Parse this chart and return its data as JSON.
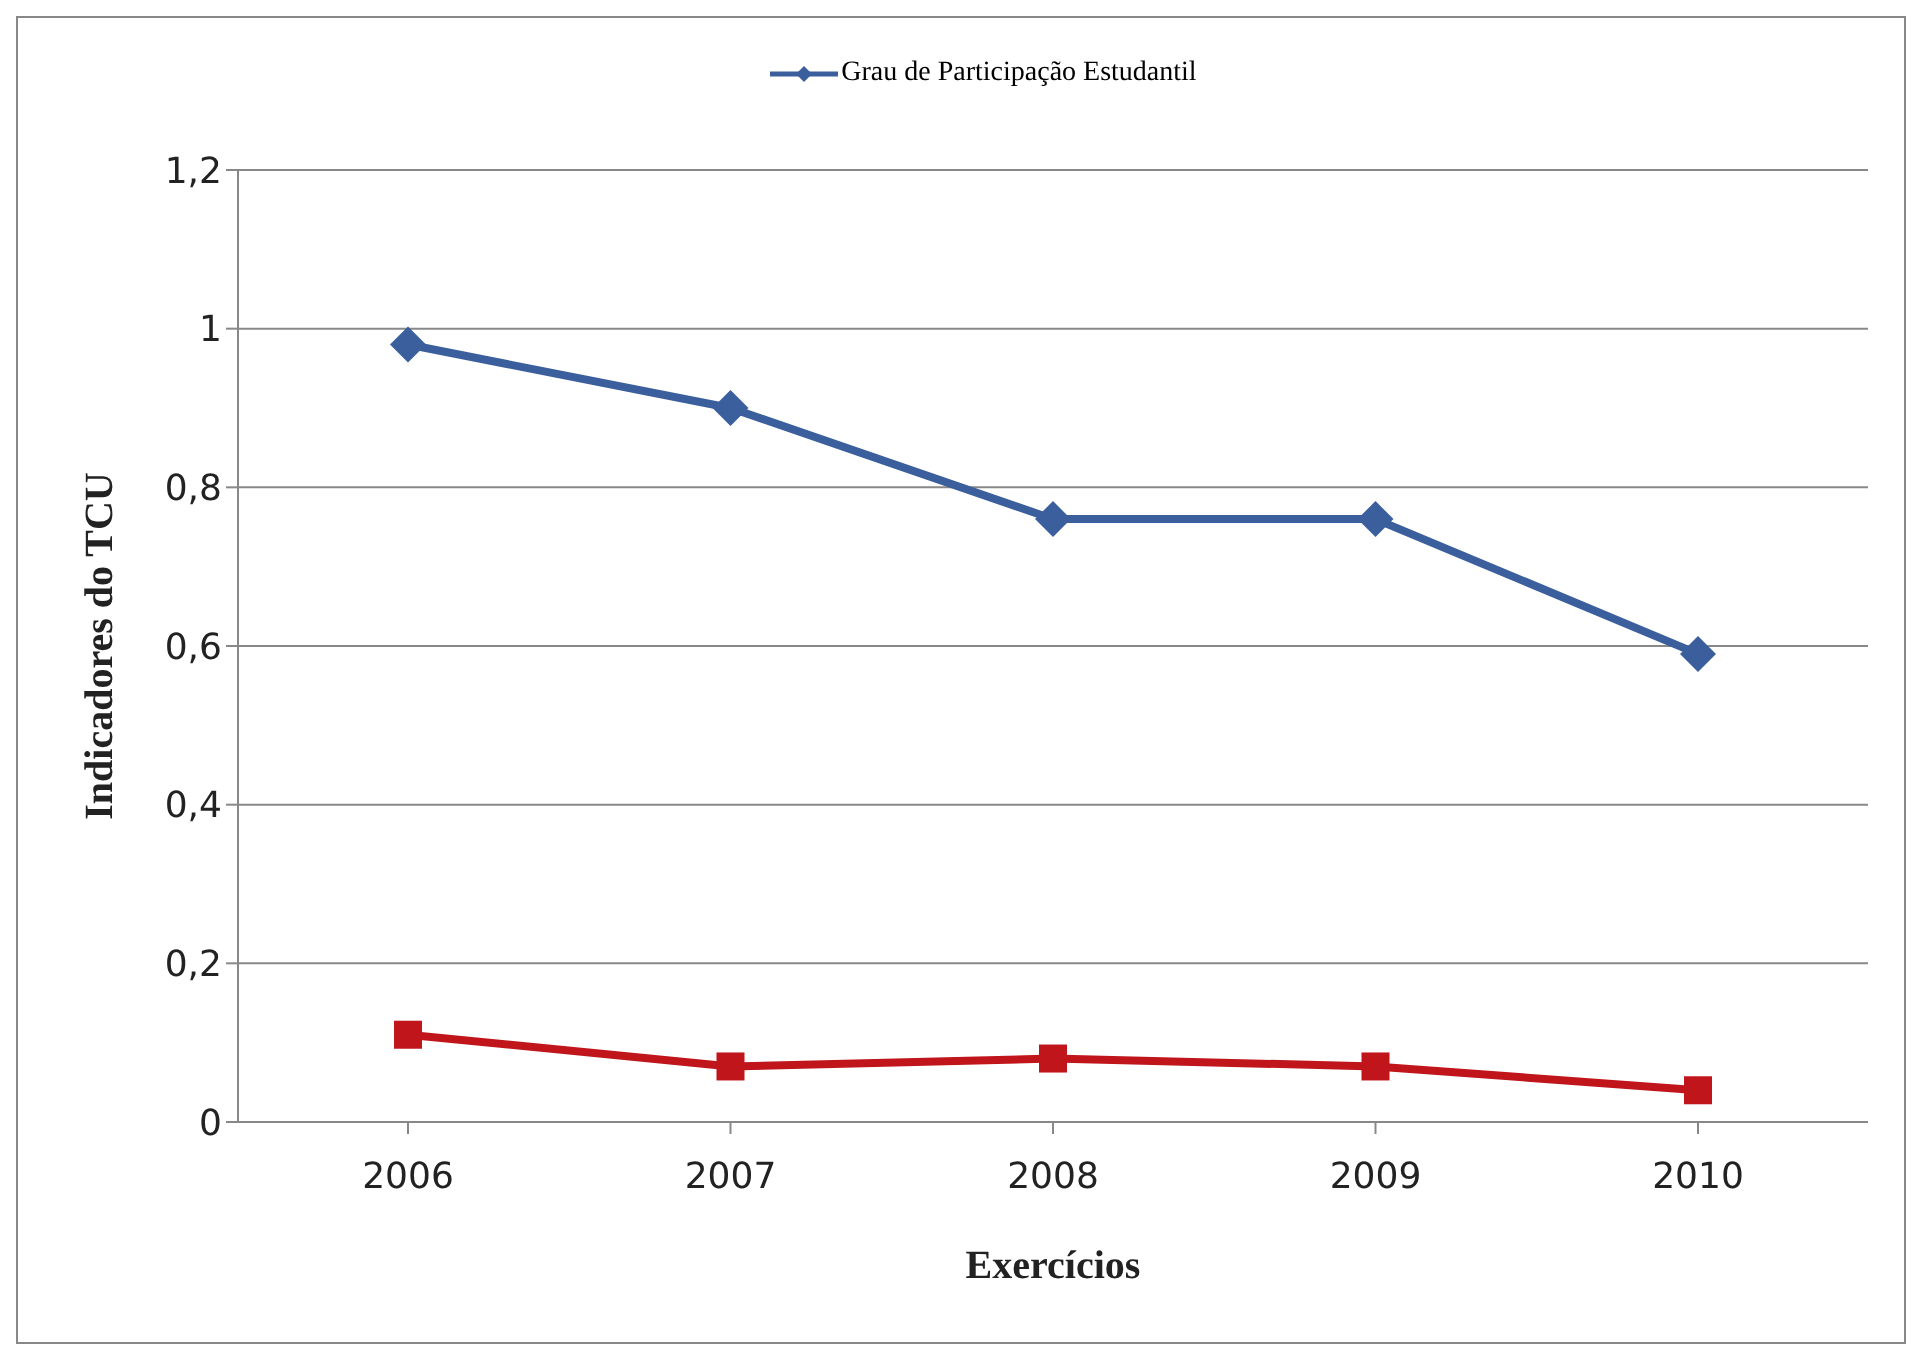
{
  "chart_data": {
    "type": "line",
    "xlabel": "Exercícios",
    "ylabel": "Indicadores do TCU",
    "categories": [
      "2006",
      "2007",
      "2008",
      "2009",
      "2010"
    ],
    "series": [
      {
        "name": "Grau de Participação Estudantil",
        "color": "#3a5f9c",
        "marker": "diamond",
        "values": [
          0.98,
          0.9,
          0.76,
          0.76,
          0.59
        ]
      },
      {
        "color": "#c0151b",
        "marker": "square",
        "values": [
          0.11,
          0.07,
          0.08,
          0.07,
          0.04
        ]
      }
    ],
    "ylim": [
      0,
      1.2
    ],
    "yticks": [
      0,
      {
        "value": 0.2,
        "label": "0,2"
      },
      {
        "value": 0.4,
        "label": "0,4"
      },
      {
        "value": 0.6,
        "label": "0,6"
      },
      {
        "value": 0.8,
        "label": "0,8"
      },
      1,
      {
        "value": 1.2,
        "label": "1,2"
      }
    ],
    "grid": "y",
    "legend": "top",
    "line_style": "solid"
  }
}
